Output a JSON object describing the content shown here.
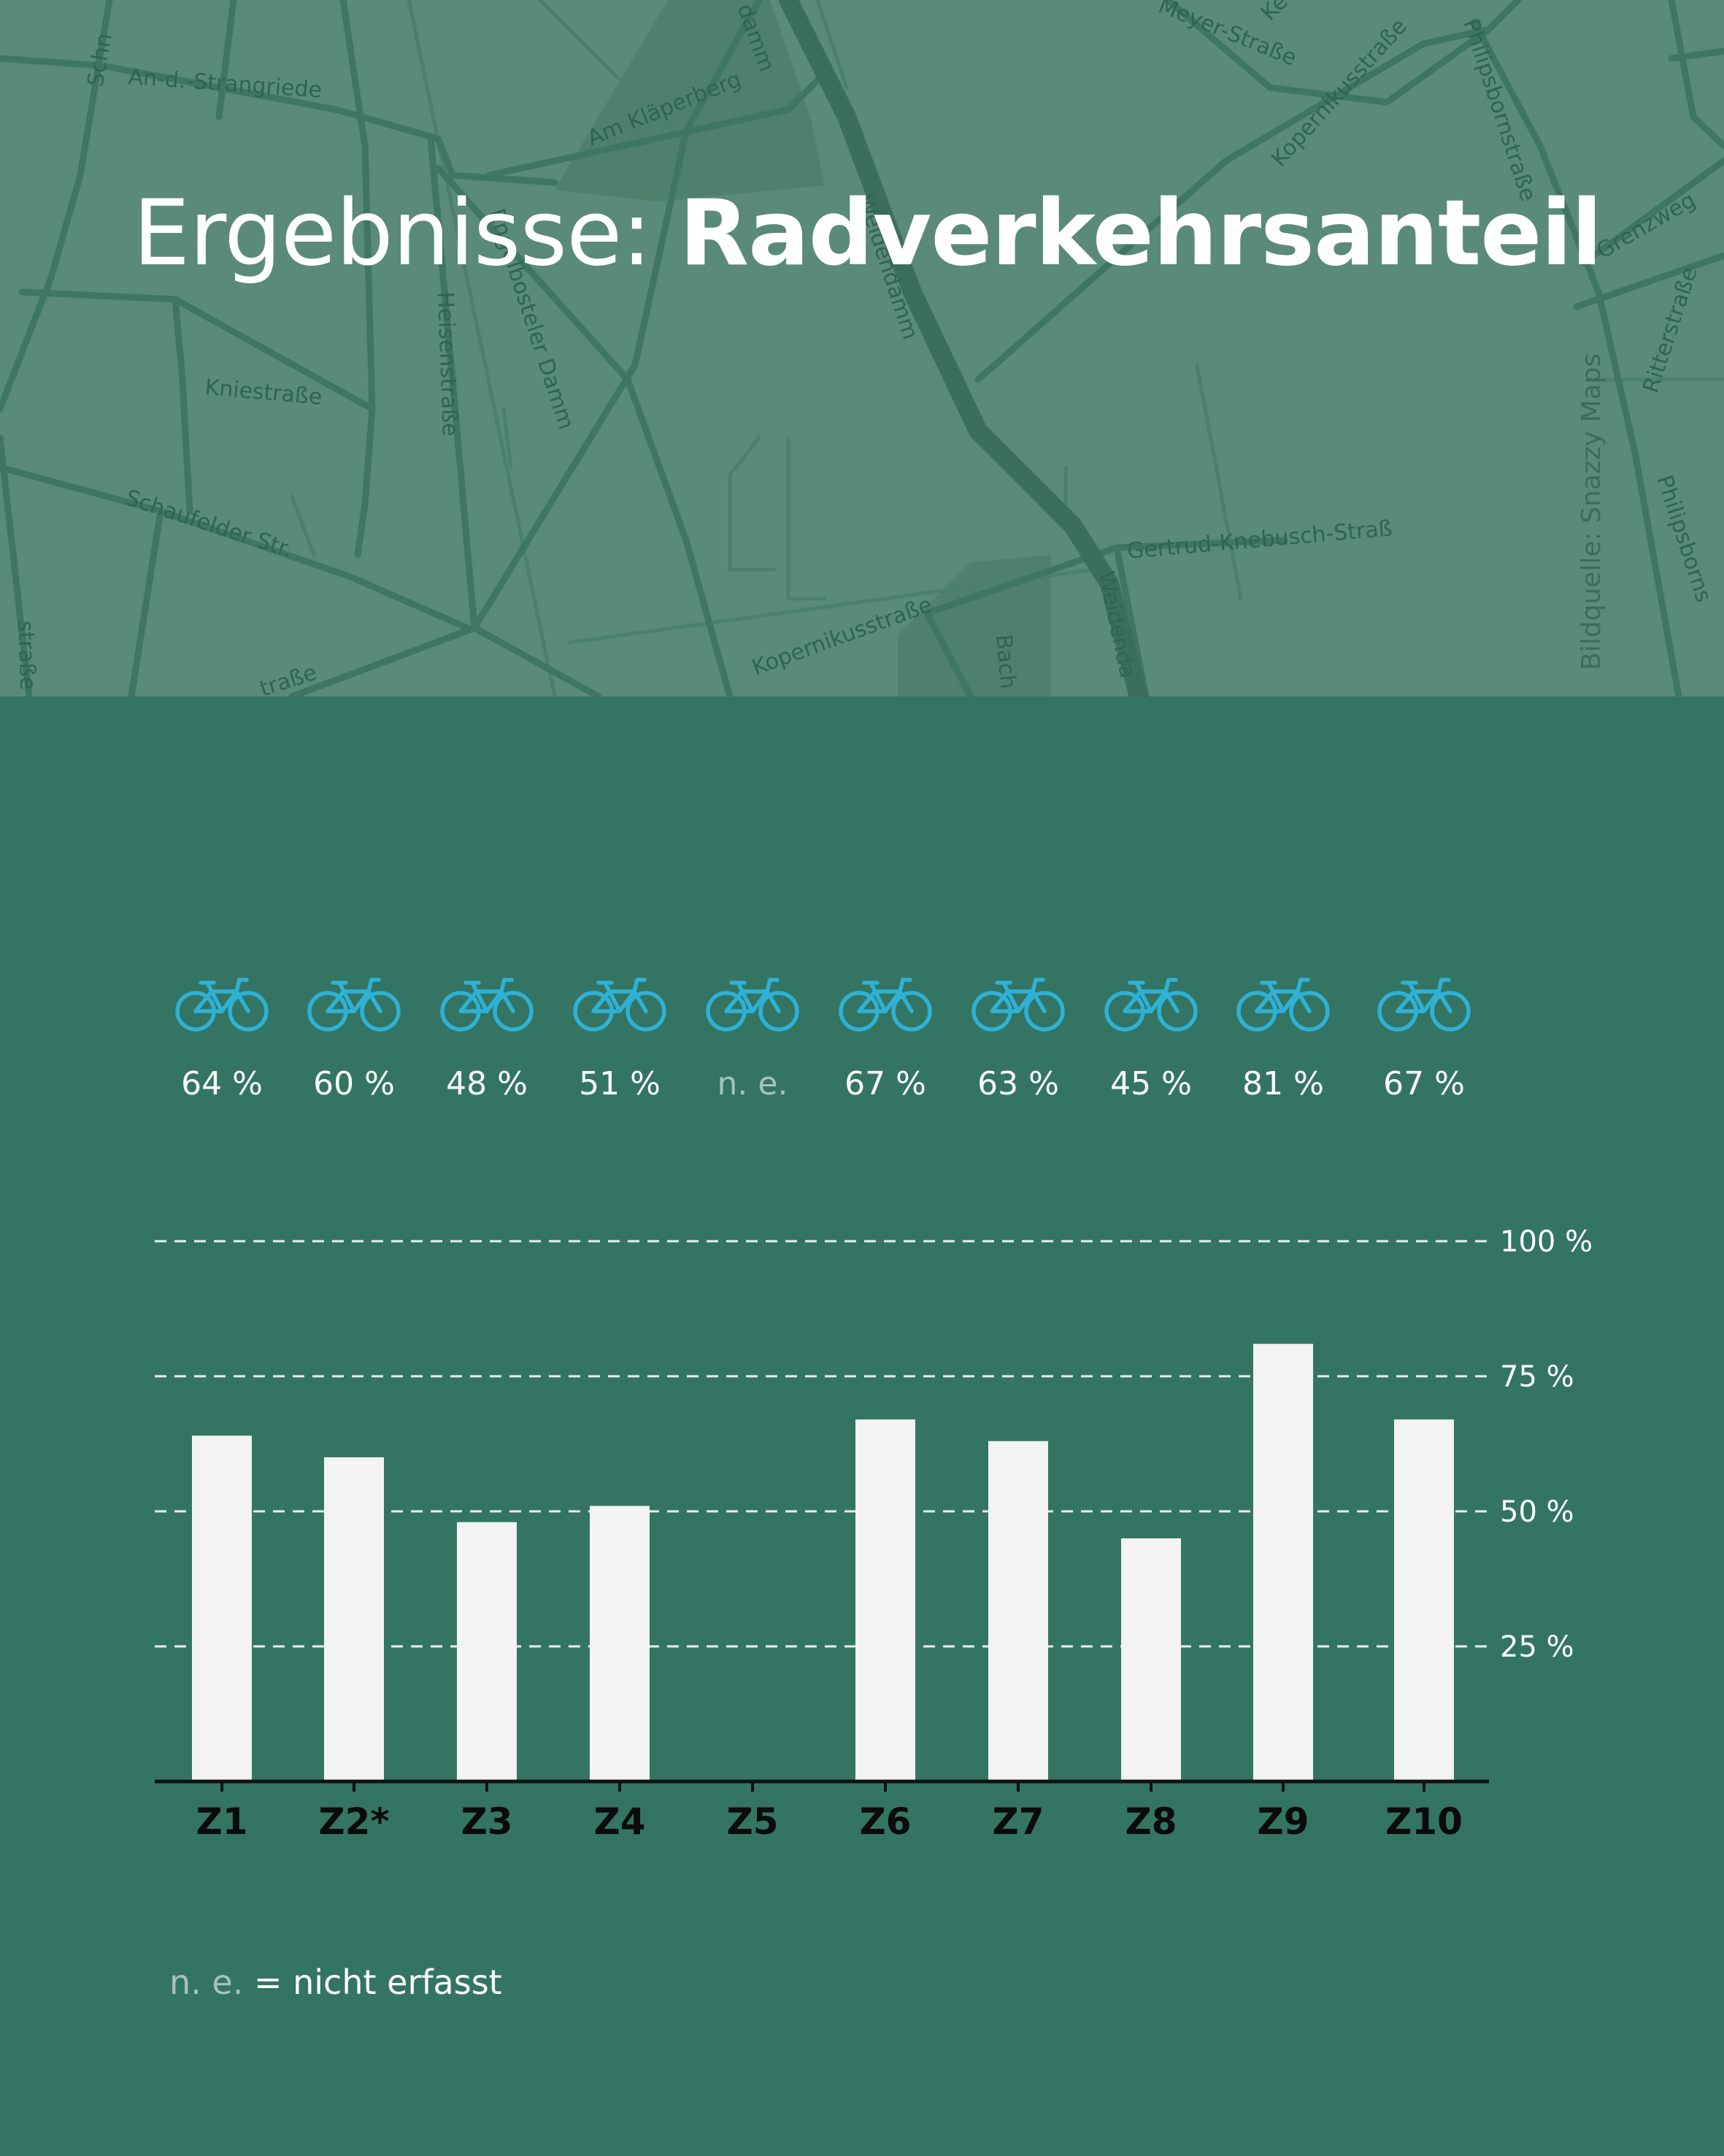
{
  "header": {
    "title_regular": "Ergebnisse: ",
    "title_bold": "Radverkehrsanteil",
    "image_credit": "Bildquelle: Snazzy Maps"
  },
  "map": {
    "street_names": [
      "Schn",
      "An-d.-Strangriede",
      "Am Kläperberg",
      "damm",
      "Meyer-Straße",
      "Ke",
      "Kopernikusstraße",
      "Philipsbornstraße",
      "Grenzweg",
      "Ritterstraße",
      "Kniestraße",
      "Heisenstraße",
      "Engelbosteler Damm",
      "Weidendamm",
      "Schaufelder Str.",
      "Gertrud-Knebusch-Straß",
      "Philipsborns",
      "Kopernikusstraße",
      "Bach",
      "Weidenda",
      "traße",
      "straße"
    ]
  },
  "footnote": {
    "abbr": "n. e.",
    "definition": " = nicht erfasst"
  },
  "chart_data": {
    "type": "bar",
    "categories": [
      "Z1",
      "Z2*",
      "Z3",
      "Z4",
      "Z5",
      "Z6",
      "Z7",
      "Z8",
      "Z9",
      "Z10"
    ],
    "values": [
      64,
      60,
      48,
      51,
      null,
      67,
      63,
      45,
      81,
      67
    ],
    "value_labels": [
      "64 %",
      "60 %",
      "48 %",
      "51 %",
      "n. e.",
      "67 %",
      "63 %",
      "45 %",
      "81 %",
      "67 %"
    ],
    "marker_icon": "bicycle-icon",
    "ylim": [
      0,
      100
    ],
    "yticks": [
      25,
      50,
      75,
      100
    ],
    "ytick_labels": [
      "25 %",
      "50 %",
      "75 %",
      "100 %"
    ],
    "grid": true,
    "grid_style": "dashed",
    "colors": {
      "background": "#337562",
      "bar": "#f3f3f3",
      "icon": "#2fb1d6",
      "na_label": "#a9c2b9",
      "header": "#5a8a79"
    }
  }
}
